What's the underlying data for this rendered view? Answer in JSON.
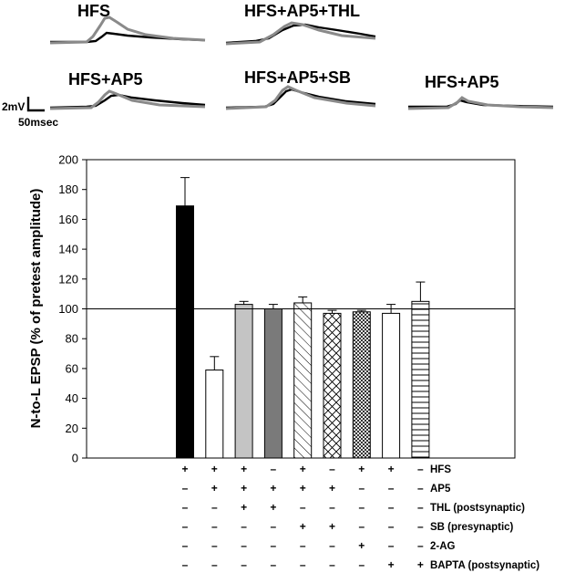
{
  "traces": {
    "labels": [
      "HFS",
      "HFS+AP5+THL",
      "HFS+AP5",
      "HFS+AP5+SB",
      "HFS+AP5"
    ],
    "scale_bar": {
      "voltage": "2mV",
      "time": "50msec"
    },
    "colors": {
      "trace_a": "#000000",
      "trace_b": "#888888"
    }
  },
  "chart_data": {
    "type": "bar",
    "ylabel": "N-to-L EPSP (% of pretest amplitude)",
    "ylim": [
      0,
      200
    ],
    "yticks": [
      "0",
      "20",
      "40",
      "60",
      "80",
      "100",
      "120",
      "140",
      "160",
      "180",
      "200"
    ],
    "reference_line": 100,
    "bars": [
      {
        "value": 169,
        "error": 19,
        "fill": "black"
      },
      {
        "value": 59,
        "error": 9,
        "fill": "white"
      },
      {
        "value": 103,
        "error": 2,
        "fill": "light-gray"
      },
      {
        "value": 100,
        "error": 3,
        "fill": "dark-gray"
      },
      {
        "value": 104,
        "error": 4,
        "fill": "diagonal-hatch"
      },
      {
        "value": 97,
        "error": 2,
        "fill": "cross-hatch"
      },
      {
        "value": 98,
        "error": 1,
        "fill": "dense-checker"
      },
      {
        "value": 97,
        "error": 6,
        "fill": "white"
      },
      {
        "value": 105,
        "error": 13,
        "fill": "horizontal-lines"
      }
    ],
    "conditions": [
      {
        "label": "HFS",
        "signs": [
          "+",
          "+",
          "+",
          "–",
          "+",
          "–",
          "+",
          "+",
          "–"
        ]
      },
      {
        "label": "AP5",
        "signs": [
          "–",
          "+",
          "+",
          "+",
          "+",
          "+",
          "–",
          "–",
          "–"
        ]
      },
      {
        "label": "THL (postsynaptic)",
        "signs": [
          "–",
          "–",
          "+",
          "+",
          "–",
          "–",
          "–",
          "–",
          "–"
        ]
      },
      {
        "label": "SB (presynaptic)",
        "signs": [
          "–",
          "–",
          "–",
          "–",
          "+",
          "+",
          "–",
          "–",
          "–"
        ]
      },
      {
        "label": "2-AG",
        "signs": [
          "–",
          "–",
          "–",
          "–",
          "–",
          "–",
          "+",
          "–",
          "–"
        ]
      },
      {
        "label": "BAPTA (postsynaptic)",
        "signs": [
          "–",
          "–",
          "–",
          "–",
          "–",
          "–",
          "–",
          "+",
          "+"
        ]
      }
    ]
  }
}
